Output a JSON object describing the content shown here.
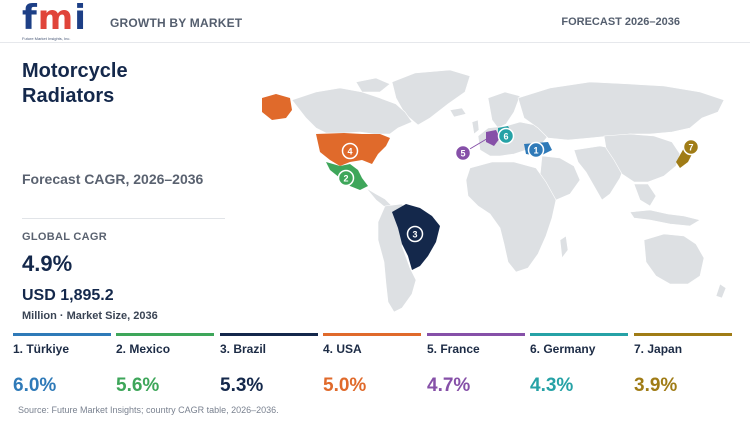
{
  "brand": {
    "logo": "fmi",
    "logo_subtext": "Future Market Insights, Inc.",
    "logo_colors": [
      "#1d3f86",
      "#e0443a",
      "#f0a521",
      "#2f9a5b",
      "#7d4aa1",
      "#1d3f86"
    ]
  },
  "header": {
    "left_label": "GROWTH BY MARKET",
    "right_label": "FORECAST 2026–2036"
  },
  "title": "Motorcycle Radiators",
  "cagr_label": "Forecast CAGR, 2026–2036",
  "global": {
    "label": "GLOBAL CAGR",
    "value": "4.9%",
    "market_size": "USD 1,895.2",
    "market_size_label": "Million · Market Size, 2036"
  },
  "map": {
    "land_color": "#dde0e3",
    "highlighted_countries": [
      {
        "rank": "1",
        "country": "Türkiye",
        "color": "#2f7ab8"
      },
      {
        "rank": "2",
        "country": "Mexico",
        "color": "#3ea65a"
      },
      {
        "rank": "3",
        "country": "Brazil",
        "color": "#14284b"
      },
      {
        "rank": "4",
        "country": "USA",
        "color": "#e06a2b"
      },
      {
        "rank": "5",
        "country": "France",
        "color": "#8650a8"
      },
      {
        "rank": "6",
        "country": "Germany",
        "color": "#26a2a6"
      },
      {
        "rank": "7",
        "country": "Japan",
        "color": "#a07c16"
      }
    ]
  },
  "legend": [
    {
      "label": "1. Türkiye",
      "value": "6.0%",
      "color": "#2f7ab8"
    },
    {
      "label": "2. Mexico",
      "value": "5.6%",
      "color": "#3ea65a"
    },
    {
      "label": "3. Brazil",
      "value": "5.3%",
      "color": "#14284b"
    },
    {
      "label": "4. USA",
      "value": "5.0%",
      "color": "#e06a2b"
    },
    {
      "label": "5. France",
      "value": "4.7%",
      "color": "#8650a8"
    },
    {
      "label": "6. Germany",
      "value": "4.3%",
      "color": "#26a2a6"
    },
    {
      "label": "7. Japan",
      "value": "3.9%",
      "color": "#a07c16"
    }
  ],
  "source": "Source: Future Market Insights; country CAGR table, 2026–2036."
}
